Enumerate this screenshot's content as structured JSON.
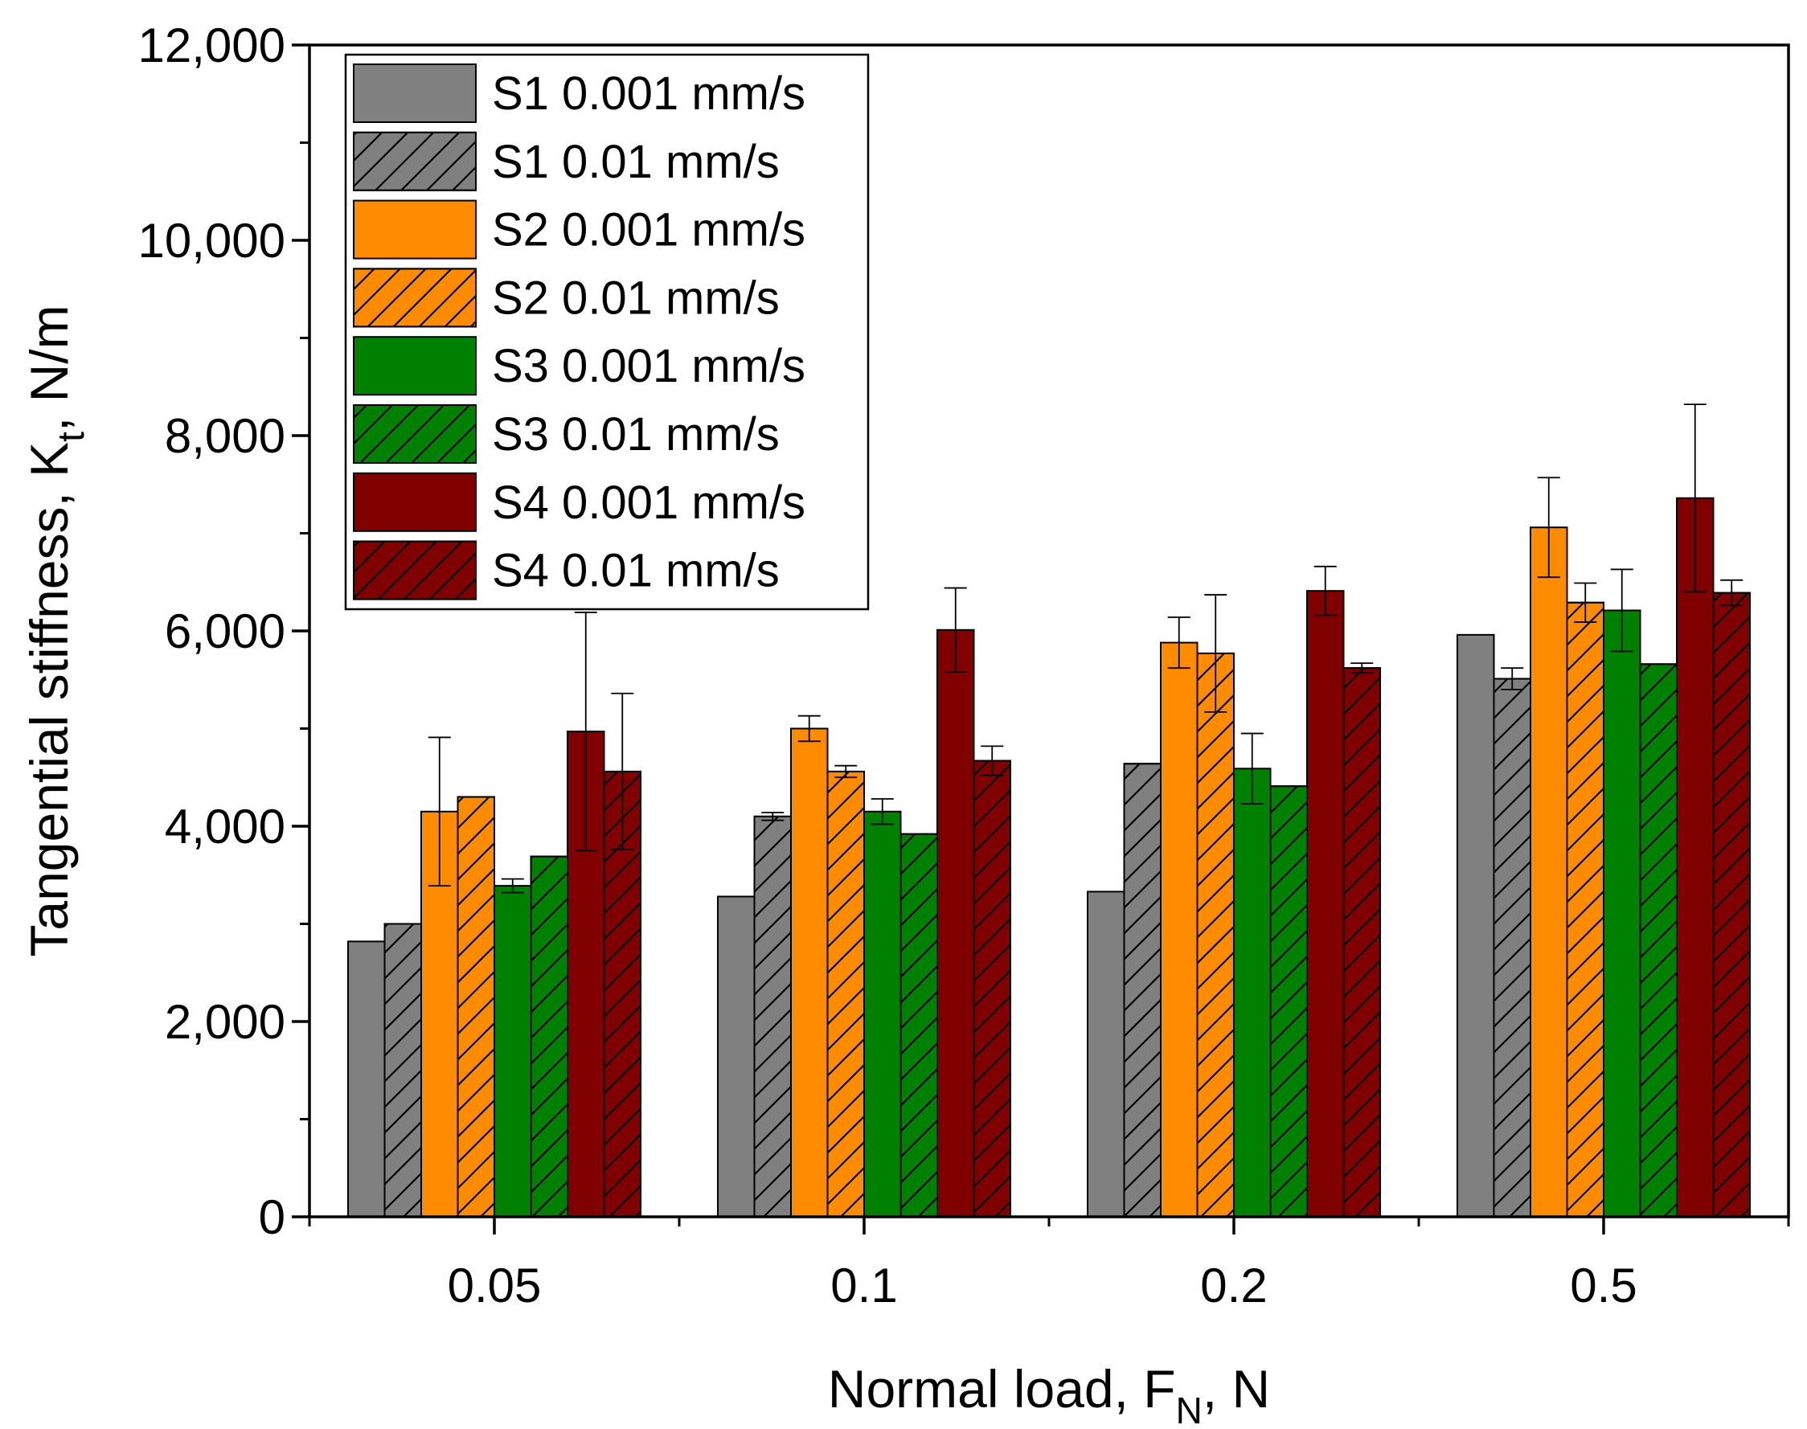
{
  "chart_data": {
    "type": "bar",
    "title": "",
    "xlabel": {
      "main": "Normal load,   F",
      "sub": "N",
      "tail": ",   N"
    },
    "ylabel": {
      "main": "Tangential stiffness,   K",
      "sub": "t",
      "tail": ",   N/m"
    },
    "categories": [
      "0.05",
      "0.1",
      "0.2",
      "0.5"
    ],
    "ylim": [
      0,
      12000
    ],
    "yticks": [
      0,
      2000,
      4000,
      6000,
      8000,
      10000,
      12000
    ],
    "ytick_labels": [
      "0",
      "2,000",
      "4,000",
      "6,000",
      "8,000",
      "10,000",
      "12,000"
    ],
    "legend_position": "top-left",
    "grid": false,
    "series": [
      {
        "name": "S1 0.001 mm/s",
        "color": "#808080",
        "hatch": false,
        "values": [
          2820,
          3280,
          3330,
          5960
        ],
        "errors": [
          0,
          0,
          0,
          0
        ]
      },
      {
        "name": "S1 0.01 mm/s",
        "color": "#808080",
        "hatch": true,
        "values": [
          3000,
          4100,
          4640,
          5510
        ],
        "errors": [
          0,
          40,
          0,
          110
        ]
      },
      {
        "name": "S2 0.001 mm/s",
        "color": "#ff8c00",
        "hatch": false,
        "values": [
          4150,
          5000,
          5880,
          7060
        ],
        "errors": [
          760,
          130,
          260,
          510
        ]
      },
      {
        "name": "S2 0.01 mm/s",
        "color": "#ff8c00",
        "hatch": true,
        "values": [
          4300,
          4560,
          5770,
          6290
        ],
        "errors": [
          0,
          60,
          600,
          200
        ]
      },
      {
        "name": "S3 0.001 mm/s",
        "color": "#008000",
        "hatch": false,
        "values": [
          3390,
          4150,
          4590,
          6210
        ],
        "errors": [
          70,
          130,
          360,
          420
        ]
      },
      {
        "name": "S3 0.01 mm/s",
        "color": "#008000",
        "hatch": true,
        "values": [
          3690,
          3920,
          4410,
          5660
        ],
        "errors": [
          0,
          0,
          0,
          0
        ]
      },
      {
        "name": "S4 0.001 mm/s",
        "color": "#800000",
        "hatch": false,
        "values": [
          4970,
          6010,
          6410,
          7360
        ],
        "errors": [
          1220,
          430,
          250,
          960
        ]
      },
      {
        "name": "S4 0.01 mm/s",
        "color": "#800000",
        "hatch": true,
        "values": [
          4560,
          4670,
          5620,
          6390
        ],
        "errors": [
          800,
          150,
          50,
          130
        ]
      }
    ]
  }
}
